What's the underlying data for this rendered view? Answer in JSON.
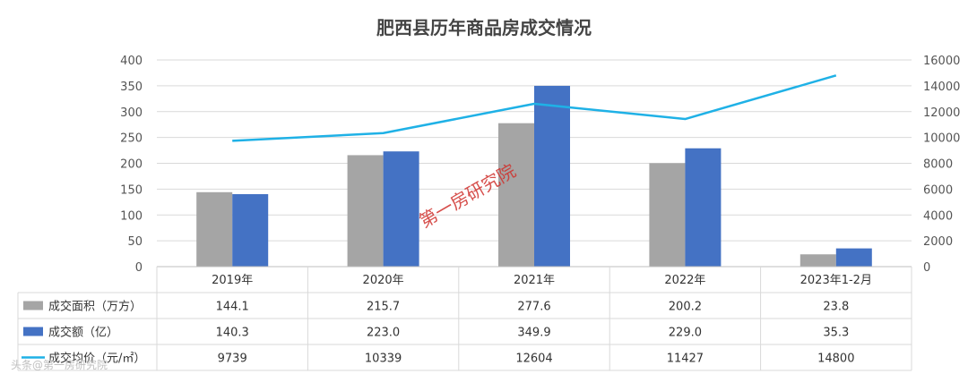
{
  "chart_data": {
    "type": "bar",
    "title": "肥西县历年商品房成交情况",
    "categories": [
      "2019年",
      "2020年",
      "2021年",
      "2022年",
      "2023年1-2月"
    ],
    "series": [
      {
        "name": "成交面积（万方）",
        "type": "bar",
        "axis": "left",
        "color": "#a5a5a5",
        "values": [
          144.1,
          215.7,
          277.6,
          200.2,
          23.8
        ],
        "labels": [
          "144.1",
          "215.7",
          "277.6",
          "200.2",
          "23.8"
        ]
      },
      {
        "name": "成交额（亿）",
        "type": "bar",
        "axis": "left",
        "color": "#4472c4",
        "values": [
          140.3,
          223.0,
          349.9,
          229.0,
          35.3
        ],
        "labels": [
          "140.3",
          "223.0",
          "349.9",
          "229.0",
          "35.3"
        ]
      },
      {
        "name": "成交均价（元/㎡）",
        "type": "line",
        "axis": "right",
        "color": "#1fb1e6",
        "values": [
          9739,
          10339,
          12604,
          11427,
          14800
        ],
        "labels": [
          "9739",
          "10339",
          "12604",
          "11427",
          "14800"
        ]
      }
    ],
    "y_left": {
      "min": 0,
      "max": 400,
      "step": 50,
      "ticks": [
        "0",
        "50",
        "100",
        "150",
        "200",
        "250",
        "300",
        "350",
        "400"
      ]
    },
    "y_right": {
      "min": 0,
      "max": 16000,
      "step": 2000,
      "ticks": [
        "0",
        "2000",
        "4000",
        "6000",
        "8000",
        "10000",
        "12000",
        "14000",
        "16000"
      ]
    },
    "grid": true,
    "data_table": true
  },
  "watermark": "第一房研究院",
  "corner_mark": "头条@第一房研究院"
}
